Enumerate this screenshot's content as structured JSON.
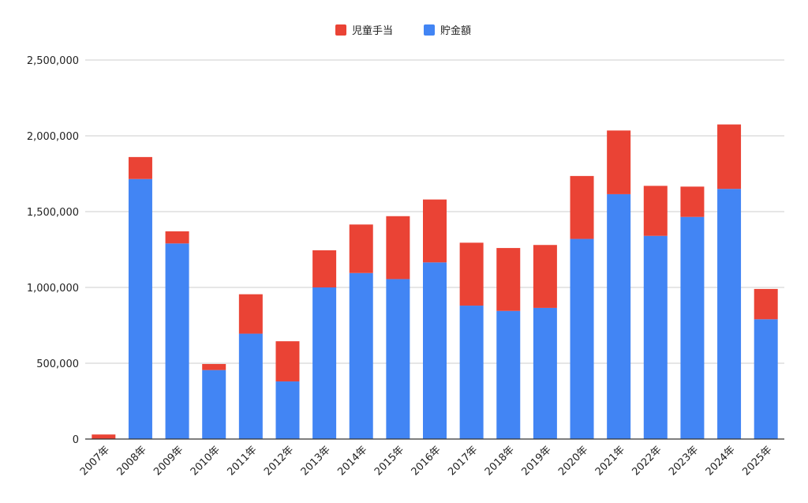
{
  "chart_data": {
    "type": "bar",
    "stacked": true,
    "title": "",
    "xlabel": "",
    "ylabel": "",
    "ylim": [
      0,
      2500000
    ],
    "yticks": [
      0,
      500000,
      1000000,
      1500000,
      2000000,
      2500000
    ],
    "ytick_labels": [
      "0",
      "500,000",
      "1,000,000",
      "1,500,000",
      "2,000,000",
      "2,500,000"
    ],
    "grid": true,
    "legend_position": "top-center",
    "categories": [
      "2007年",
      "2008年",
      "2009年",
      "2010年",
      "2011年",
      "2012年",
      "2013年",
      "2014年",
      "2015年",
      "2016年",
      "2017年",
      "2018年",
      "2019年",
      "2020年",
      "2021年",
      "2022年",
      "2023年",
      "2024年",
      "2025年"
    ],
    "series": [
      {
        "name": "貯金額",
        "color": "#4285f4",
        "values": [
          0,
          1715000,
          1290000,
          455000,
          695000,
          380000,
          1000000,
          1095000,
          1055000,
          1165000,
          880000,
          845000,
          865000,
          1320000,
          1615000,
          1340000,
          1465000,
          1650000,
          790000
        ]
      },
      {
        "name": "児童手当",
        "color": "#ea4335",
        "values": [
          30000,
          145000,
          80000,
          40000,
          260000,
          265000,
          245000,
          320000,
          415000,
          415000,
          415000,
          415000,
          415000,
          415000,
          420000,
          330000,
          200000,
          425000,
          200000
        ]
      }
    ],
    "legend": [
      {
        "label": "児童手当",
        "color": "#ea4335"
      },
      {
        "label": "貯金額",
        "color": "#4285f4"
      }
    ]
  }
}
